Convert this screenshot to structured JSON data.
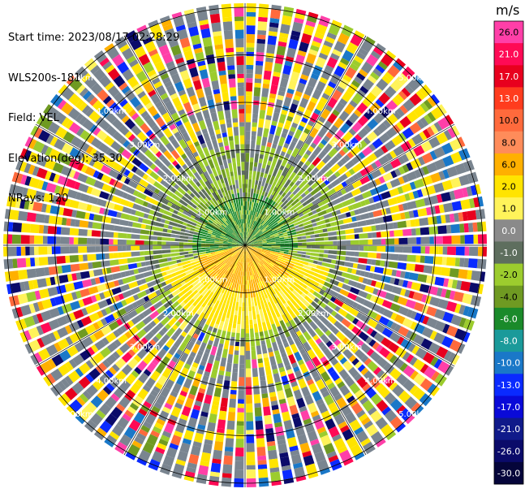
{
  "header": {
    "start_time": "Start time: 2023/08/17 02:28:29",
    "device": "WLS200s-181",
    "field": "Field: VEL",
    "elevation": "Elevation(deg): 35.30",
    "nrays": "NRays: 120"
  },
  "chart_data": {
    "type": "heatmap",
    "projection": "polar-ppi",
    "title": "",
    "n_rays": 120,
    "n_range_gates": 55,
    "range_ring_labels": [
      "1.00km",
      "2.00km",
      "3.00km",
      "4.00km",
      "5.00km"
    ],
    "colorbar": {
      "unit": "m/s",
      "ticks": [
        "26.0",
        "21.0",
        "17.0",
        "13.0",
        "10.0",
        "8.0",
        "6.0",
        "2.0",
        "1.0",
        "0.0",
        "-1.0",
        "-2.0",
        "-4.0",
        "-6.0",
        "-8.0",
        "-10.0",
        "-13.0",
        "-17.0",
        "-21.0",
        "-26.0",
        "-30.0"
      ],
      "colors": [
        "#ff3fa8",
        "#ff0a55",
        "#e8001e",
        "#ff3c1e",
        "#ff6a3c",
        "#ff8c5a",
        "#ffb000",
        "#ffe400",
        "#fff35a",
        "#8a8a8a",
        "#5e6e5e",
        "#9ccc2e",
        "#6f9a22",
        "#1a8a2a",
        "#1a9a9a",
        "#1a78c8",
        "#0a2aff",
        "#0a0ad8",
        "#101a8a",
        "#0b0b6a",
        "#05053a"
      ]
    },
    "field_description": {
      "inner_region": "green/olive values near 0 to -4 m/s",
      "south_lobe": "yellow values 1 to 6 m/s",
      "outer_region": "noisy mixture of all colors"
    }
  }
}
